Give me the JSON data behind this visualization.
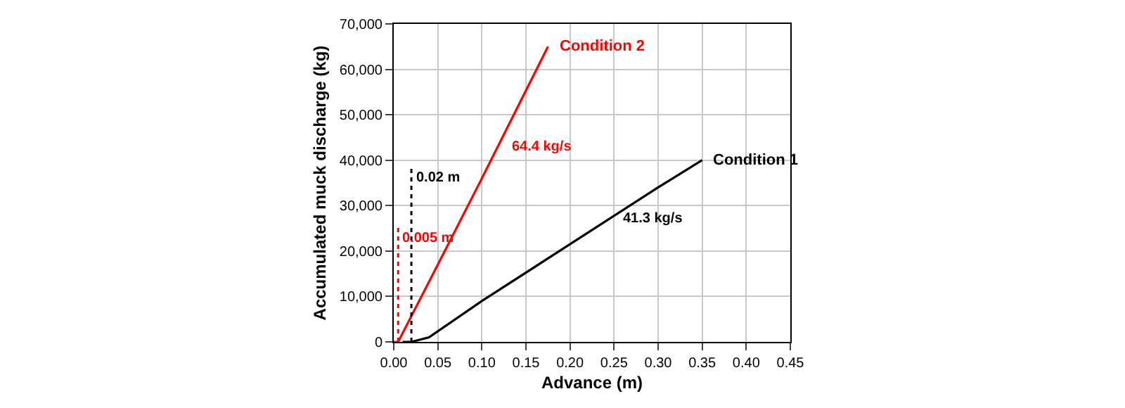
{
  "chart_data": {
    "type": "line",
    "xlabel": "Advance (m)",
    "ylabel": "Accumulated muck discharge (kg)",
    "series": [
      {
        "name": "Condition 1",
        "color": "#000000",
        "x": [
          0.01,
          0.02,
          0.04,
          0.1,
          0.2,
          0.3,
          0.35
        ],
        "values": [
          0,
          0,
          1000,
          9000,
          21500,
          34000,
          40000
        ]
      },
      {
        "name": "Condition 2",
        "color": "#ff0000",
        "x": [
          0,
          0.005,
          0.05,
          0.1,
          0.175
        ],
        "values": [
          0,
          0,
          17000,
          36000,
          65000
        ]
      }
    ],
    "xlim": [
      0,
      0.45
    ],
    "xticks": [
      {
        "value": 0,
        "label": "0.00"
      },
      {
        "value": 0.05,
        "label": "0.05"
      },
      {
        "value": 0.1,
        "label": "0.10"
      },
      {
        "value": 0.15,
        "label": "0.15"
      },
      {
        "value": 0.2,
        "label": "0.20"
      },
      {
        "value": 0.25,
        "label": "0.25"
      },
      {
        "value": 0.3,
        "label": "0.30"
      },
      {
        "value": 0.35,
        "label": "0.35"
      },
      {
        "value": 0.4,
        "label": "0.40"
      },
      {
        "value": 0.45,
        "label": "0.45"
      }
    ],
    "ylim": [
      0,
      70000
    ],
    "yticks": [
      0,
      {
        "value": 10000,
        "label": "10,000"
      },
      {
        "value": 20000,
        "label": "20,000"
      },
      {
        "value": 30000,
        "label": "30,000"
      },
      {
        "value": 40000,
        "label": "40,000"
      },
      {
        "value": 50000,
        "label": "50,000"
      },
      {
        "value": 60000,
        "label": "60,000"
      },
      {
        "value": 70000,
        "label": "70,000"
      }
    ],
    "ref_lines": [
      {
        "axis": "x",
        "value": 0.02,
        "label": "0.02 m",
        "color": "#000000",
        "line_style": "dotted"
      },
      {
        "axis": "x",
        "value": 0.005,
        "label": "0.005 m",
        "color": "#ff0000",
        "line_style": "dotted"
      }
    ],
    "annotations": [
      {
        "text": "64.4 kg/s",
        "x": 0.125,
        "y": 43000
      },
      {
        "text": "41.3 kg/s",
        "x": 0.25,
        "y": 27000
      }
    ],
    "grid": true,
    "legend": false,
    "marker": "none",
    "line_style": "solid"
  }
}
